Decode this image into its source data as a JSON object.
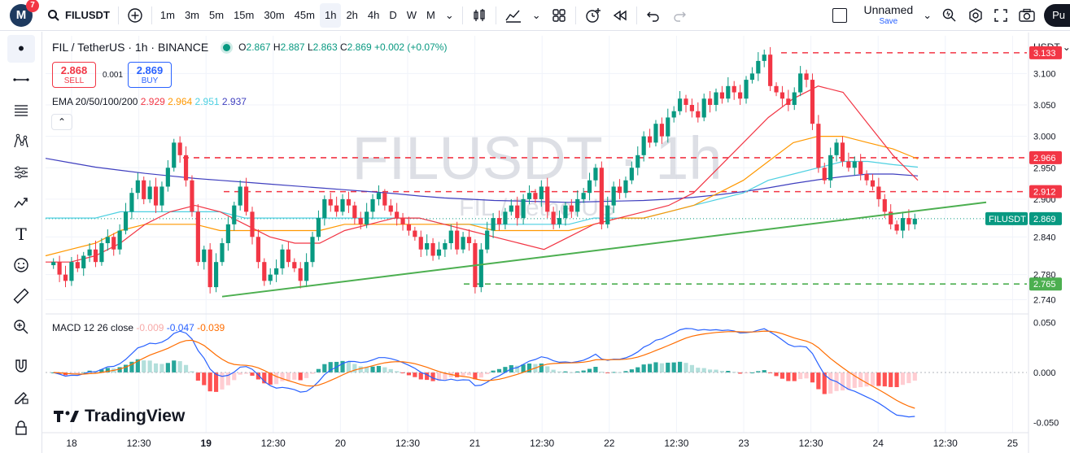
{
  "topbar": {
    "avatar_letter": "M",
    "notifications": "7",
    "symbol": "FILUSDT",
    "intervals": [
      "1m",
      "3m",
      "5m",
      "15m",
      "30m",
      "45m",
      "1h",
      "2h",
      "4h",
      "D",
      "W",
      "M"
    ],
    "active_interval": "1h",
    "layout_name": "Unnamed",
    "layout_status": "Save",
    "publish_label": "Pu"
  },
  "legend": {
    "title": "FIL / TetherUS · 1h · BINANCE",
    "o_label": "O",
    "o": "2.867",
    "h_label": "H",
    "h": "2.887",
    "l_label": "L",
    "l": "2.863",
    "c_label": "C",
    "c": "2.869",
    "change": "+0.002 (+0.07%)"
  },
  "trade": {
    "sell_price": "2.868",
    "sell_label": "SELL",
    "spread": "0.001",
    "buy_price": "2.869",
    "buy_label": "BUY"
  },
  "ema": {
    "label": "EMA 20/50/100/200",
    "v20": "2.929",
    "v50": "2.964",
    "v100": "2.951",
    "v200": "2.937",
    "c20": "#f23645",
    "c50": "#ff9800",
    "c100": "#4dd0e1",
    "c200": "#3f3fbf"
  },
  "macd": {
    "label": "MACD 12 26 close",
    "hist": "-0.009",
    "macd": "-0.047",
    "signal": "-0.039"
  },
  "watermark": {
    "symbol": "FILUSDT · 1h",
    "name": "FIL / TetherUS"
  },
  "price_axis": {
    "currency": "USDT",
    "ticks": [
      "3.100",
      "3.050",
      "3.000",
      "2.950",
      "2.900",
      "2.840",
      "2.780",
      "2.740"
    ],
    "macd_ticks": [
      "0.050",
      "0.000",
      "-0.050"
    ],
    "labels": [
      {
        "text": "3.133",
        "color": "#f23645"
      },
      {
        "text": "2.966",
        "color": "#f23645"
      },
      {
        "text": "2.912",
        "color": "#f23645"
      },
      {
        "text": "2.869",
        "color": "#089981"
      },
      {
        "text": "2.765",
        "color": "#4caf50"
      }
    ],
    "symbol_tag": "FILUSDT"
  },
  "time_axis": [
    "18",
    "12:30",
    "19",
    "12:30",
    "20",
    "12:30",
    "21",
    "12:30",
    "22",
    "12:30",
    "23",
    "12:30",
    "24",
    "12:30",
    "25"
  ],
  "logo": "TradingView",
  "chart_data": {
    "type": "candlestick",
    "title": "FIL / TetherUS · 1h · BINANCE",
    "price_range": [
      2.72,
      3.16
    ],
    "horizontal_levels": [
      3.133,
      2.966,
      2.912,
      2.765
    ],
    "last_price": 2.869,
    "trendline": [
      [
        0.0,
        2.745
      ],
      [
        1.0,
        2.895
      ]
    ],
    "closes": [
      2.8,
      2.78,
      2.77,
      2.8,
      2.79,
      2.81,
      2.82,
      2.8,
      2.83,
      2.84,
      2.82,
      2.85,
      2.88,
      2.91,
      2.93,
      2.9,
      2.92,
      2.89,
      2.92,
      2.95,
      2.99,
      2.97,
      2.93,
      2.88,
      2.8,
      2.82,
      2.76,
      2.8,
      2.83,
      2.86,
      2.89,
      2.92,
      2.88,
      2.84,
      2.8,
      2.77,
      2.78,
      2.79,
      2.82,
      2.8,
      2.79,
      2.77,
      2.8,
      2.84,
      2.87,
      2.9,
      2.89,
      2.88,
      2.9,
      2.89,
      2.87,
      2.86,
      2.88,
      2.9,
      2.91,
      2.89,
      2.88,
      2.87,
      2.86,
      2.85,
      2.84,
      2.82,
      2.83,
      2.81,
      2.82,
      2.83,
      2.85,
      2.82,
      2.84,
      2.83,
      2.76,
      2.82,
      2.85,
      2.87,
      2.86,
      2.88,
      2.89,
      2.87,
      2.9,
      2.91,
      2.9,
      2.92,
      2.88,
      2.86,
      2.87,
      2.89,
      2.88,
      2.9,
      2.91,
      2.93,
      2.95,
      2.86,
      2.89,
      2.92,
      2.91,
      2.93,
      2.95,
      2.97,
      3.0,
      2.99,
      3.02,
      3.0,
      3.03,
      3.04,
      3.06,
      3.05,
      3.04,
      3.03,
      3.06,
      3.05,
      3.07,
      3.06,
      3.08,
      3.07,
      3.06,
      3.09,
      3.1,
      3.12,
      3.13,
      3.08,
      3.07,
      3.06,
      3.05,
      3.07,
      3.1,
      3.09,
      3.02,
      2.95,
      2.93,
      2.97,
      2.99,
      2.96,
      2.95,
      2.96,
      2.94,
      2.93,
      2.92,
      2.9,
      2.88,
      2.86,
      2.85,
      2.87,
      2.86,
      2.869
    ],
    "ema20": [
      2.8,
      2.8,
      2.81,
      2.83,
      2.86,
      2.88,
      2.89,
      2.88,
      2.86,
      2.84,
      2.83,
      2.83,
      2.85,
      2.86,
      2.87,
      2.87,
      2.86,
      2.85,
      2.84,
      2.83,
      2.82,
      2.84,
      2.86,
      2.87,
      2.88,
      2.89,
      2.91,
      2.95,
      2.99,
      3.03,
      3.06,
      3.08,
      3.07,
      3.02,
      2.97,
      2.93
    ],
    "ema50": [
      2.81,
      2.82,
      2.83,
      2.85,
      2.86,
      2.86,
      2.86,
      2.85,
      2.85,
      2.85,
      2.85,
      2.85,
      2.86,
      2.86,
      2.86,
      2.86,
      2.86,
      2.86,
      2.85,
      2.85,
      2.85,
      2.85,
      2.86,
      2.87,
      2.87,
      2.88,
      2.89,
      2.91,
      2.93,
      2.96,
      2.99,
      3.0,
      3.0,
      2.99,
      2.98,
      2.964
    ],
    "ema100": [
      2.87,
      2.87,
      2.87,
      2.88,
      2.88,
      2.88,
      2.88,
      2.88,
      2.87,
      2.87,
      2.87,
      2.87,
      2.87,
      2.87,
      2.87,
      2.87,
      2.86,
      2.86,
      2.86,
      2.86,
      2.86,
      2.86,
      2.87,
      2.87,
      2.87,
      2.88,
      2.89,
      2.9,
      2.91,
      2.93,
      2.94,
      2.95,
      2.96,
      2.96,
      2.955,
      2.951
    ],
    "ema200": [
      2.965,
      2.958,
      2.951,
      2.946,
      2.941,
      2.937,
      2.933,
      2.93,
      2.927,
      2.924,
      2.921,
      2.918,
      2.915,
      2.912,
      2.909,
      2.905,
      2.902,
      2.9,
      2.898,
      2.897,
      2.896,
      2.895,
      2.896,
      2.897,
      2.898,
      2.9,
      2.903,
      2.907,
      2.912,
      2.918,
      2.925,
      2.931,
      2.936,
      2.94,
      2.94,
      2.937
    ],
    "macd_range": [
      -0.06,
      0.06
    ]
  }
}
